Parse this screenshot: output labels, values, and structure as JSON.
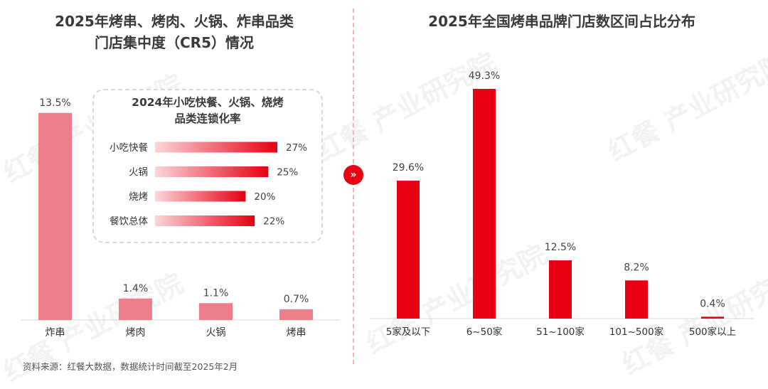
{
  "left_panel": {
    "title_line1": "2025年烤串、烤肉、火锅、炸串品类",
    "title_line2": "门店集中度（CR5）情况"
  },
  "inset": {
    "title_line1": "2024年小吃快餐、火锅、烧烤",
    "title_line2": "品类连锁化率"
  },
  "right_panel": {
    "title": "2025年全国烤串品牌门店数区间占比分布"
  },
  "source": "资料来源：红餐大数据，数据统计时间截至2025年2月",
  "watermark": "红餐 产业研究院",
  "colors": {
    "left_bar": "#ee7f8a",
    "right_bar": "#e60012",
    "inset_bar_start": "#fbd6da",
    "inset_bar_end": "#e60012",
    "accent": "#e60012"
  },
  "chart_data": [
    {
      "type": "bar",
      "title": "2025年烤串、烤肉、火锅、炸串品类门店集中度（CR5）情况",
      "categories": [
        "炸串",
        "烤肉",
        "火锅",
        "烤串"
      ],
      "values": [
        13.5,
        1.4,
        1.1,
        0.7
      ],
      "labels": [
        "13.5%",
        "1.4%",
        "1.1%",
        "0.7%"
      ],
      "unit": "%",
      "ylim": [
        0,
        14
      ]
    },
    {
      "type": "bar",
      "orientation": "horizontal",
      "title": "2024年小吃快餐、火锅、烧烤品类连锁化率",
      "categories": [
        "小吃快餐",
        "火锅",
        "烧烤",
        "餐饮总体"
      ],
      "values": [
        27,
        25,
        20,
        22
      ],
      "labels": [
        "27%",
        "25%",
        "20%",
        "22%"
      ],
      "unit": "%",
      "xlim": [
        0,
        27
      ]
    },
    {
      "type": "bar",
      "title": "2025年全国烤串品牌门店数区间占比分布",
      "categories": [
        "5家及以下",
        "6~50家",
        "51~100家",
        "101~500家",
        "500家以上"
      ],
      "values": [
        29.6,
        49.3,
        12.5,
        8.2,
        0.4
      ],
      "labels": [
        "29.6%",
        "49.3%",
        "12.5%",
        "8.2%",
        "0.4%"
      ],
      "unit": "%",
      "ylim": [
        0,
        49.3
      ]
    }
  ]
}
